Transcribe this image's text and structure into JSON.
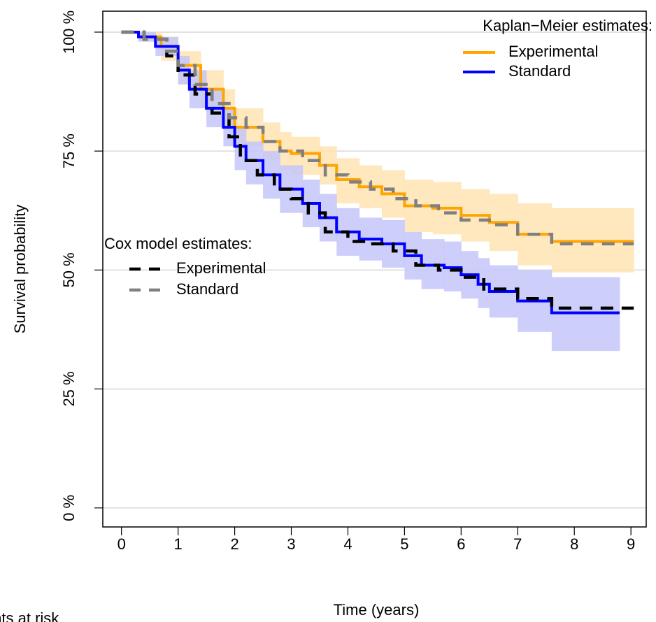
{
  "chart_data": {
    "type": "step",
    "xlabel": "Time (years)",
    "ylabel": "Survival probability",
    "footnote": "Patients at risk",
    "xlim": [
      -0.33,
      9.27
    ],
    "ylim": [
      -4,
      104.4
    ],
    "xticks": [
      0,
      1,
      2,
      3,
      4,
      5,
      6,
      7,
      8,
      9
    ],
    "yticks": [
      {
        "value": 0,
        "label": "0 %"
      },
      {
        "value": 25,
        "label": "25 %"
      },
      {
        "value": 50,
        "label": "50 %"
      },
      {
        "value": 75,
        "label": "75 %"
      },
      {
        "value": 100,
        "label": "100 %"
      }
    ],
    "grid": true,
    "legends": [
      {
        "title": "Kaplan−Meier estimates:",
        "corner": "top-right"
      },
      {
        "title": "Cox model estimates:",
        "corner": "middle-left"
      }
    ],
    "series": [
      {
        "name": "Experimental",
        "legend": 0,
        "color": "#FFA500",
        "band_color": "#FFE3B3",
        "dash": false,
        "x": [
          0,
          0.3,
          0.7,
          1.0,
          1.4,
          1.8,
          2.0,
          2.5,
          2.8,
          3.0,
          3.5,
          3.8,
          4.2,
          4.6,
          5.0,
          5.5,
          6.0,
          6.5,
          7.0,
          7.6,
          9.05
        ],
        "values": [
          100,
          99,
          97,
          93,
          88,
          84,
          80,
          77,
          75,
          74.5,
          72,
          69,
          67.5,
          66,
          63.5,
          63,
          61.5,
          60,
          57.5,
          56,
          56
        ],
        "upper": [
          100,
          100,
          99,
          96,
          92,
          88,
          84,
          81,
          79,
          78,
          76,
          73.5,
          72,
          71,
          69,
          68.5,
          67,
          66,
          64,
          63,
          63
        ],
        "lower": [
          100,
          98,
          94,
          89,
          84,
          80,
          76,
          73,
          71,
          70,
          68,
          64,
          63,
          61,
          58,
          57.5,
          56,
          54,
          51,
          49.5,
          49.5
        ]
      },
      {
        "name": "Standard",
        "legend": 0,
        "color": "#0000FF",
        "band_color": "#C6C6FA",
        "dash": false,
        "x": [
          0,
          0.3,
          0.6,
          1.0,
          1.2,
          1.5,
          1.8,
          2.0,
          2.2,
          2.5,
          2.8,
          3.2,
          3.5,
          3.8,
          4.2,
          4.6,
          5.0,
          5.3,
          5.7,
          6.0,
          6.3,
          6.5,
          7.0,
          7.6,
          8.8
        ],
        "values": [
          100,
          99,
          97,
          92,
          88,
          84,
          80,
          76,
          73,
          70,
          67,
          64,
          61,
          58,
          56.5,
          55.5,
          53,
          51,
          50.5,
          49,
          47,
          45.5,
          43.5,
          41,
          41
        ],
        "upper": [
          100,
          100,
          99,
          95,
          92,
          88,
          84,
          80,
          77,
          75,
          72,
          69,
          66,
          63,
          61,
          60.5,
          58,
          56.5,
          56,
          54,
          52.5,
          51,
          50,
          48.5,
          48.5
        ],
        "lower": [
          100,
          98,
          95,
          89,
          84,
          80,
          76,
          71,
          68,
          65,
          62,
          59,
          56,
          53,
          52,
          50.5,
          48,
          46,
          45.5,
          44,
          42,
          40,
          37,
          33,
          33
        ]
      },
      {
        "name": "Experimental",
        "legend": 1,
        "color": "#000000",
        "dash": true,
        "x": [
          0,
          0.4,
          0.8,
          1.0,
          1.3,
          1.6,
          1.9,
          2.1,
          2.4,
          2.7,
          3.0,
          3.3,
          3.6,
          4.0,
          4.4,
          4.8,
          5.2,
          5.6,
          6.0,
          6.4,
          7.0,
          7.6,
          9.05
        ],
        "values": [
          100,
          98.5,
          95,
          91,
          87,
          83,
          78,
          73,
          70,
          67,
          65,
          62,
          58,
          56,
          55.5,
          54,
          51,
          50,
          48.5,
          46,
          44,
          42,
          42
        ]
      },
      {
        "name": "Standard",
        "legend": 1,
        "color": "#808080",
        "dash": true,
        "x": [
          0,
          0.4,
          0.8,
          1.0,
          1.3,
          1.6,
          1.9,
          2.2,
          2.5,
          2.8,
          3.2,
          3.6,
          4.0,
          4.4,
          4.8,
          5.2,
          5.6,
          6.0,
          6.5,
          7.0,
          7.6,
          9.05
        ],
        "values": [
          100,
          98.5,
          96,
          93,
          89,
          85,
          82,
          80,
          77,
          75,
          73,
          70,
          68.5,
          67,
          65,
          63.5,
          62,
          60.5,
          59.5,
          57.5,
          55.5,
          55.5
        ]
      }
    ]
  }
}
